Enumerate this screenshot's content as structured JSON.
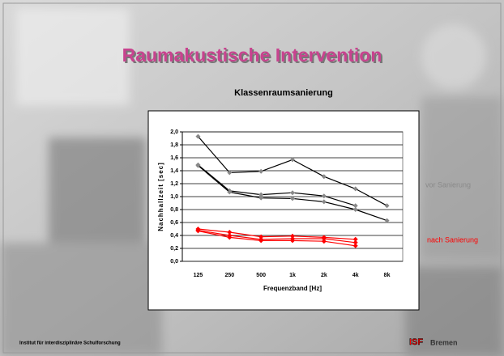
{
  "chart_data": {
    "type": "line",
    "slide_title": "Raumakustische Intervention",
    "title": "Klassenraumsanierung",
    "ylabel": "Nachhallzeit [sec]",
    "xlabel": "Frequenzband [Hz]",
    "categories": [
      "125",
      "250",
      "500",
      "1k",
      "2k",
      "4k",
      "8k"
    ],
    "series": [
      {
        "color": "#000000",
        "marker_color": "#888888",
        "values": [
          1.93,
          1.37,
          1.39,
          1.57,
          1.31,
          1.12,
          0.86
        ]
      },
      {
        "color": "#000000",
        "marker_color": "#888888",
        "values": [
          1.49,
          1.09,
          1.03,
          1.06,
          1.01,
          0.86,
          null
        ]
      },
      {
        "color": "#000000",
        "marker_color": "#888888",
        "values": [
          1.48,
          1.07,
          0.98,
          0.97,
          0.92,
          0.8,
          0.63
        ]
      },
      {
        "color": "#ff0000",
        "marker_color": "#ff0000",
        "values": [
          0.5,
          0.45,
          0.38,
          0.39,
          0.37,
          0.34,
          null
        ]
      },
      {
        "color": "#ff0000",
        "marker_color": "#ff0000",
        "values": [
          0.48,
          0.4,
          0.34,
          0.35,
          0.35,
          0.29,
          null
        ]
      },
      {
        "color": "#ff0000",
        "marker_color": "#ff0000",
        "values": [
          0.47,
          0.37,
          0.32,
          0.32,
          0.31,
          0.24,
          null
        ]
      }
    ],
    "ylim": [
      0,
      2
    ],
    "yticks": [
      {
        "value": 0,
        "label": "0,0"
      },
      {
        "value": 0.2,
        "label": "0,2"
      },
      {
        "value": 0.4,
        "label": "0,4"
      },
      {
        "value": 0.6,
        "label": "0,6"
      },
      {
        "value": 0.8,
        "label": "0,8"
      },
      {
        "value": 1,
        "label": "1,0"
      },
      {
        "value": 1.2,
        "label": "1,2"
      },
      {
        "value": 1.4,
        "label": "1,4"
      },
      {
        "value": 1.6,
        "label": "1,6"
      },
      {
        "value": 1.8,
        "label": "1,8"
      },
      {
        "value": 2,
        "label": "2,0"
      }
    ],
    "grid": true,
    "annotations": [
      {
        "text": "vor Sanierung",
        "color": "#8a8a8a"
      },
      {
        "text": "nach Sanierung",
        "color": "#ff0000"
      }
    ],
    "footer": "Institut für interdisziplinäre Schulforschung",
    "logo": {
      "mark": "ISF",
      "text": "Bremen"
    }
  }
}
